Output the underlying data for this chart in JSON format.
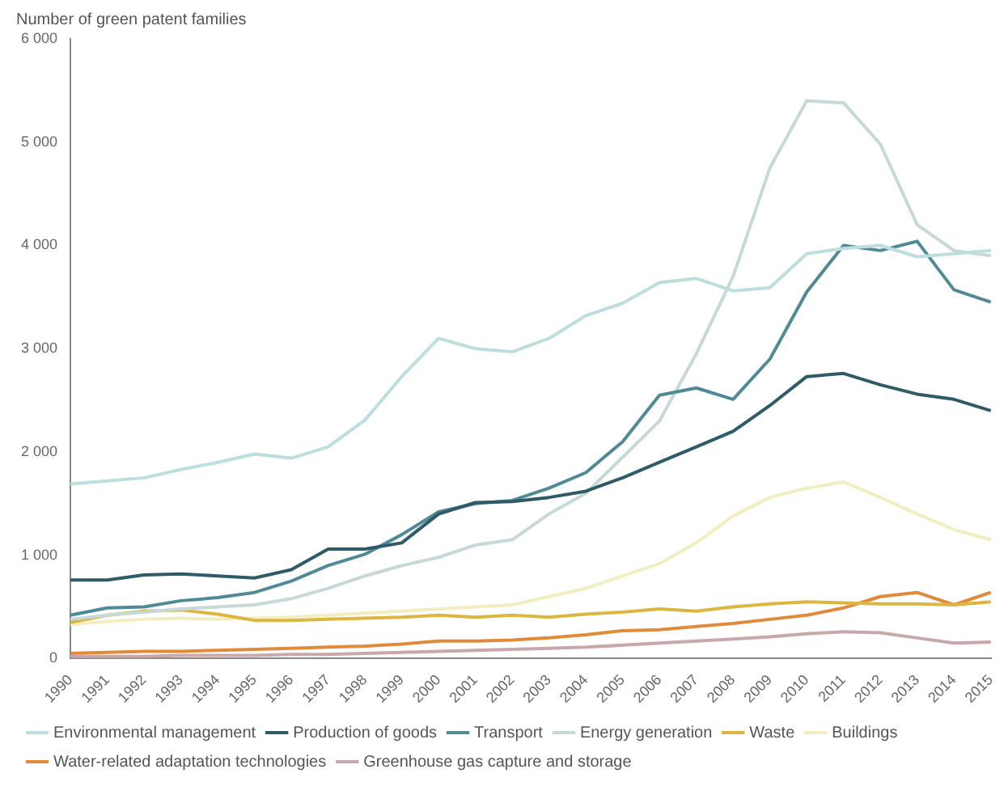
{
  "chart_data": {
    "type": "line",
    "ylabel": "Number of green patent families",
    "categories": [
      "1990",
      "1991",
      "1992",
      "1993",
      "1994",
      "1995",
      "1996",
      "1997",
      "1998",
      "1999",
      "2000",
      "2001",
      "2002",
      "2003",
      "2004",
      "2005",
      "2006",
      "2007",
      "2008",
      "2009",
      "2010",
      "2011",
      "2012",
      "2013",
      "2014",
      "2015"
    ],
    "ylim": [
      0,
      6000
    ],
    "yticks": [
      {
        "value": 0,
        "label": "0"
      },
      {
        "value": 1000,
        "label": "1 000"
      },
      {
        "value": 2000,
        "label": "2 000"
      },
      {
        "value": 3000,
        "label": "3 000"
      },
      {
        "value": 4000,
        "label": "4 000"
      },
      {
        "value": 5000,
        "label": "5 000"
      },
      {
        "value": 6000,
        "label": "6 000"
      }
    ],
    "grid": false,
    "legend": "bottom",
    "marker": "none",
    "line_style": "solid",
    "series": [
      {
        "name": "Environmental management",
        "color": "#bcdede",
        "values": [
          1690,
          1720,
          1750,
          1830,
          1900,
          1980,
          1940,
          2050,
          2310,
          2730,
          3100,
          3000,
          2970,
          3100,
          3320,
          3440,
          3640,
          3680,
          3560,
          3590,
          3920,
          3970,
          4000,
          3890,
          3920,
          3950
        ]
      },
      {
        "name": "Production of goods",
        "color": "#2f5a68",
        "values": [
          760,
          760,
          810,
          820,
          800,
          780,
          860,
          1060,
          1060,
          1120,
          1400,
          1510,
          1520,
          1560,
          1620,
          1750,
          1900,
          2050,
          2200,
          2450,
          2730,
          2760,
          2650,
          2560,
          2510,
          2400
        ]
      },
      {
        "name": "Transport",
        "color": "#4f8a96",
        "values": [
          420,
          490,
          500,
          560,
          590,
          640,
          750,
          900,
          1010,
          1200,
          1420,
          1500,
          1530,
          1650,
          1800,
          2100,
          2550,
          2620,
          2510,
          2900,
          3550,
          4000,
          3950,
          4040,
          3570,
          3450
        ]
      },
      {
        "name": "Energy generation",
        "color": "#c6d8d8",
        "values": [
          380,
          420,
          450,
          480,
          500,
          520,
          580,
          680,
          800,
          900,
          980,
          1100,
          1150,
          1400,
          1600,
          1950,
          2300,
          2950,
          3700,
          4750,
          5400,
          5380,
          4980,
          4200,
          3950,
          3900
        ]
      },
      {
        "name": "Waste",
        "color": "#dcb640",
        "values": [
          350,
          420,
          460,
          470,
          430,
          370,
          370,
          380,
          390,
          400,
          420,
          400,
          420,
          400,
          430,
          450,
          480,
          460,
          500,
          530,
          550,
          540,
          530,
          530,
          520,
          550
        ]
      },
      {
        "name": "Buildings",
        "color": "#f2eec0",
        "values": [
          330,
          360,
          380,
          390,
          380,
          390,
          400,
          420,
          440,
          460,
          480,
          500,
          520,
          600,
          680,
          800,
          920,
          1120,
          1380,
          1560,
          1650,
          1710,
          1560,
          1400,
          1250,
          1150
        ]
      },
      {
        "name": "Water-related adaptation technologies",
        "color": "#e08a3a",
        "values": [
          50,
          60,
          70,
          70,
          80,
          90,
          100,
          110,
          120,
          140,
          170,
          170,
          180,
          200,
          230,
          270,
          280,
          310,
          340,
          380,
          420,
          490,
          600,
          640,
          520,
          640
        ]
      },
      {
        "name": "Greenhouse gas capture and storage",
        "color": "#c8a8a8",
        "values": [
          20,
          20,
          20,
          30,
          30,
          30,
          40,
          40,
          50,
          60,
          70,
          80,
          90,
          100,
          110,
          130,
          150,
          170,
          190,
          210,
          240,
          260,
          250,
          200,
          150,
          160
        ]
      }
    ]
  }
}
